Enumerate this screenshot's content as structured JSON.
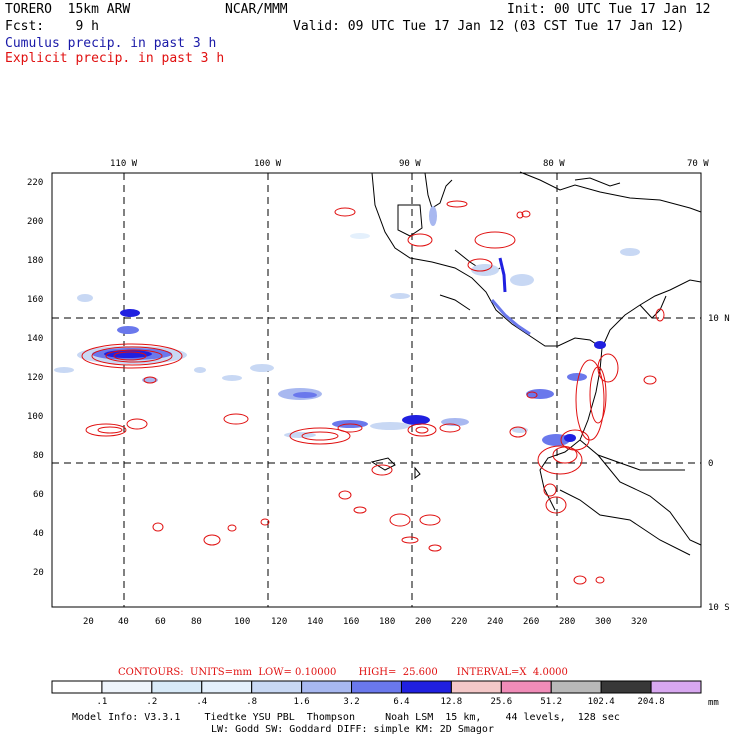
{
  "header": {
    "model": "TORERO  15km ARW",
    "org": "NCAR/MMM",
    "init": "Init: 00 UTC Tue 17 Jan 12",
    "fcst": "Fcst:    9 h",
    "valid": "Valid: 09 UTC Tue 17 Jan 12 (03 CST Tue 17 Jan 12)",
    "legend1": "Cumulus precip. in past 3 h",
    "legend2": "Explicit precip. in past 3 h"
  },
  "map": {
    "lon_labels": [
      "110 W",
      "100 W",
      "90 W",
      "80 W",
      "70 W"
    ],
    "lat_labels": [
      "10 N",
      "0",
      "10 S"
    ],
    "y_ticks": [
      "220",
      "200",
      "180",
      "160",
      "140",
      "120",
      "100",
      "80",
      "60",
      "40",
      "20"
    ],
    "x_ticks": [
      "20",
      "40",
      "60",
      "80",
      "100",
      "120",
      "140",
      "160",
      "180",
      "200",
      "220",
      "240",
      "260",
      "280",
      "300",
      "320"
    ]
  },
  "contours_line": "CONTOURS:  UNITS=mm  LOW= 0.10000       HIGH=  25.600      INTERVAL=X  4.0000",
  "colorbar": {
    "labels": [
      ".1",
      ".2",
      ".4",
      ".8",
      "1.6",
      "3.2",
      "6.4",
      "12.8",
      "25.6",
      "51.2",
      "102.4",
      "204.8"
    ],
    "unit": "mm",
    "colors": [
      "#ffffff",
      "#eef4fb",
      "#d8eaf8",
      "#e4f0fc",
      "#c8d8f4",
      "#a8b8f0",
      "#6a78ec",
      "#2020e0",
      "#f4c8c8",
      "#f08cb8",
      "#b8b8b8",
      "#383838",
      "#d8a8f0"
    ]
  },
  "footer": {
    "line1": "Model Info: V3.3.1    Tiedtke YSU PBL  Thompson     Noah LSM  15 km,    44 levels,  128 sec",
    "line2": "LW: Godd SW: Goddard DIFF: simple KM: 2D Smagor"
  }
}
